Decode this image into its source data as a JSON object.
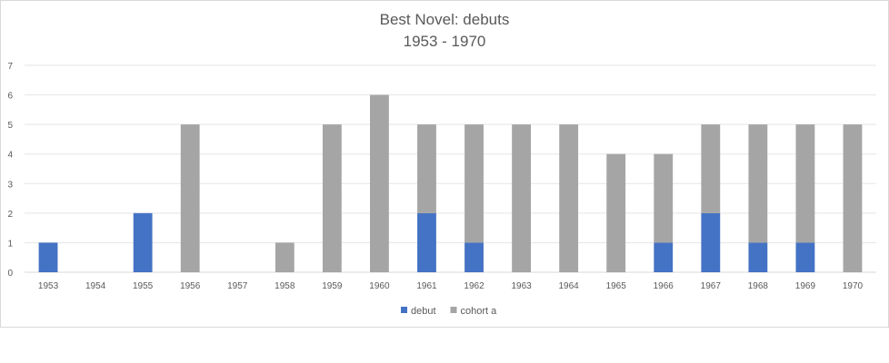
{
  "chart_data": {
    "type": "bar",
    "stacked": true,
    "title": "Best Novel: debuts",
    "subtitle": "1953 - 1970",
    "categories": [
      "1953",
      "1954",
      "1955",
      "1956",
      "1957",
      "1958",
      "1959",
      "1960",
      "1961",
      "1962",
      "1963",
      "1964",
      "1965",
      "1966",
      "1967",
      "1968",
      "1969",
      "1970"
    ],
    "series": [
      {
        "name": "debut",
        "color": "#4472c4",
        "values": [
          1,
          0,
          2,
          0,
          0,
          0,
          0,
          0,
          2,
          1,
          0,
          0,
          0,
          1,
          2,
          1,
          1,
          0
        ]
      },
      {
        "name": "cohort a",
        "color": "#a5a5a5",
        "values": [
          0,
          0,
          0,
          5,
          0,
          1,
          5,
          6,
          3,
          4,
          5,
          5,
          4,
          3,
          3,
          4,
          4,
          5
        ]
      }
    ],
    "ylim": [
      0,
      7
    ],
    "yticks": [
      0,
      1,
      2,
      3,
      4,
      5,
      6,
      7
    ],
    "grid": true,
    "legend": "bottom"
  }
}
